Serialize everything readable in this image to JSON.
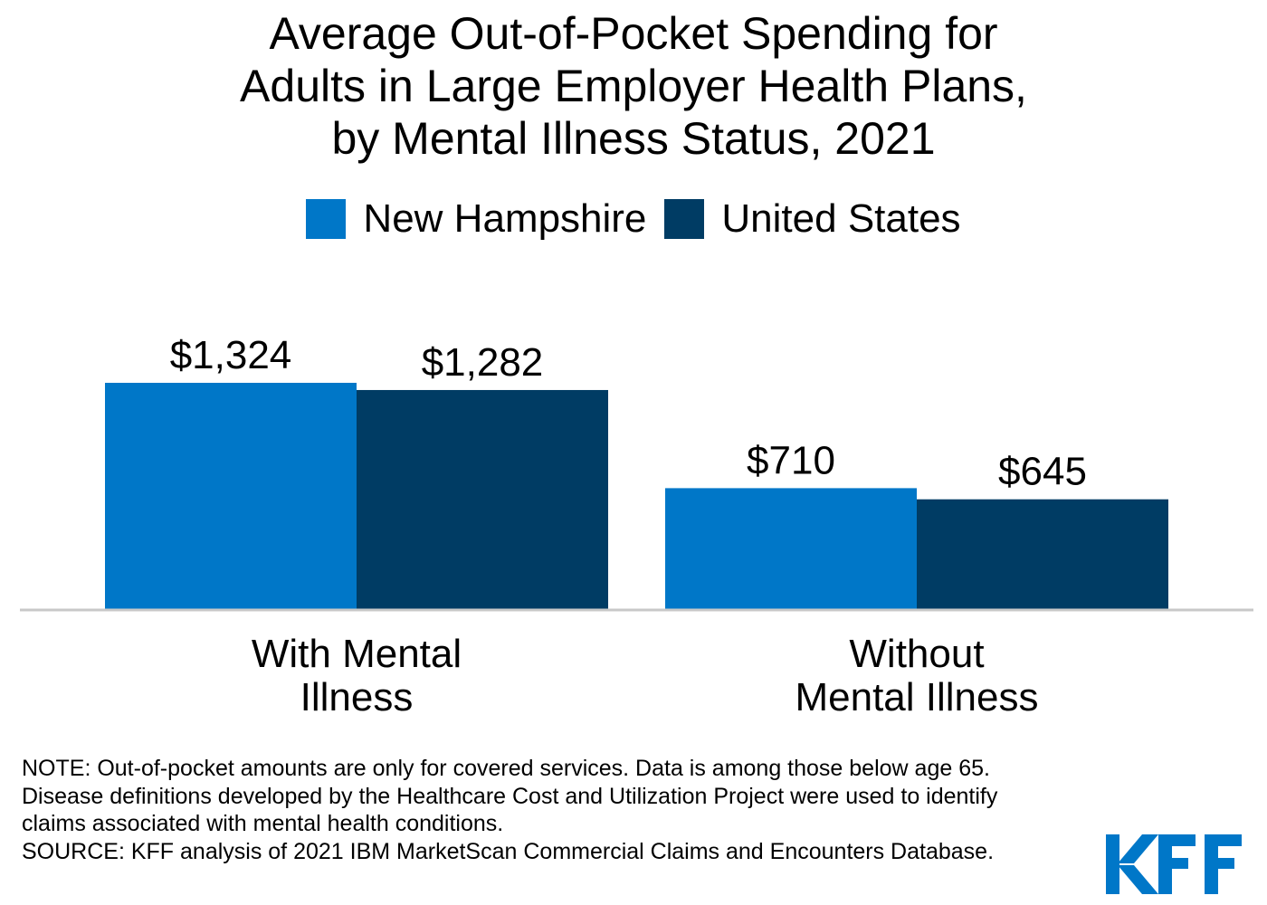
{
  "chart_data": {
    "type": "bar",
    "title_lines": [
      "Average Out-of-Pocket Spending for",
      "Adults in Large Employer Health Plans,",
      "by Mental Illness Status, 2021"
    ],
    "categories": [
      [
        "With Mental",
        "Illness"
      ],
      [
        "Without",
        "Mental Illness"
      ]
    ],
    "series": [
      {
        "name": "New Hampshire",
        "values": [
          1324,
          710
        ],
        "labels": [
          "$1,324",
          "$710"
        ]
      },
      {
        "name": "United States",
        "values": [
          1282,
          645
        ],
        "labels": [
          "$1,282",
          "$645"
        ]
      }
    ],
    "colors": {
      "new_hampshire": "#0077c8",
      "united_states": "#003c64",
      "baseline": "#c8c8c8"
    },
    "legend_position": "top-center",
    "grid": false,
    "ylim": [
      0,
      1324
    ],
    "xlabel": "",
    "ylabel": ""
  },
  "notes": [
    "NOTE: Out-of-pocket amounts are only for covered services. Data is among those below age 65. Disease definitions developed by the Healthcare Cost and Utilization Project were used to identify claims associated with mental health conditions.",
    "SOURCE: KFF analysis of 2021 IBM MarketScan Commercial Claims and Encounters Database."
  ],
  "logo": {
    "text": "KFF",
    "color": "#0077c8"
  }
}
